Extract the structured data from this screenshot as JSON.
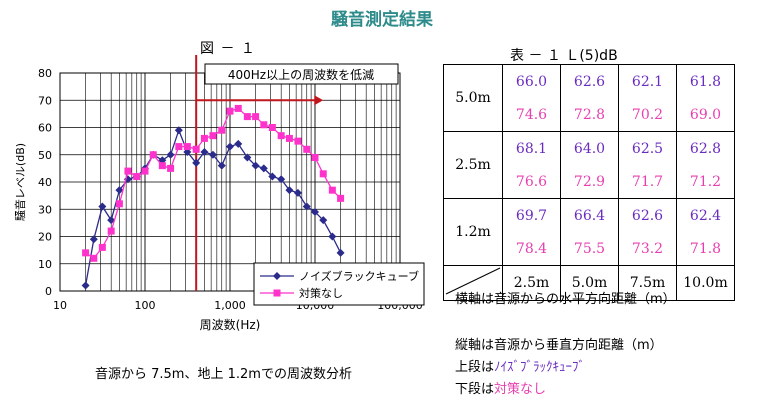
{
  "page": {
    "title": "騒音測定結果",
    "figure_label": "図 － １",
    "caption": "音源から 7.5m、地上 1.2mでの周波数分析"
  },
  "chart_data": {
    "type": "line",
    "xscale": "log",
    "xlim": [
      10,
      100000
    ],
    "ylim": [
      0,
      80
    ],
    "ylabel": "騒音レベル(dB)",
    "xlabel": "周波数(Hz)",
    "yticks": [
      "0",
      "10",
      "20",
      "30",
      "40",
      "50",
      "60",
      "70",
      "80"
    ],
    "xticks": [
      "10",
      "100",
      "1,000",
      "10,000",
      "100,000"
    ],
    "grid": true,
    "legend_position": "bottom-right",
    "annotation": {
      "text": "400Hz以上の周波数を低減",
      "vline_x": 400,
      "arrow_from_x": 400,
      "arrow_to_x": 12500,
      "arrow_y": 70,
      "line_color": "#c0161e"
    },
    "x": [
      20,
      25,
      31.5,
      40,
      50,
      63,
      80,
      100,
      125,
      160,
      200,
      250,
      315,
      400,
      500,
      630,
      800,
      1000,
      1250,
      1600,
      2000,
      2500,
      3150,
      4000,
      5000,
      6300,
      8000,
      10000,
      12500,
      16000,
      20000
    ],
    "series": [
      {
        "name": "ノイズブラックキューブ",
        "color": "#2b2b8c",
        "marker": "diamond",
        "values": [
          2,
          19,
          31,
          26,
          37,
          41,
          42,
          45,
          50,
          48,
          50,
          59,
          51,
          47,
          51,
          50,
          46,
          53,
          54,
          49,
          46,
          45,
          42,
          41,
          37,
          36,
          31,
          29,
          26,
          20,
          14
        ]
      },
      {
        "name": "対策なし",
        "color": "#ff33cc",
        "marker": "square",
        "values": [
          14,
          12,
          16,
          22,
          32,
          44,
          42,
          44,
          50,
          46,
          45,
          53,
          53,
          52,
          56,
          57,
          59,
          66,
          67,
          64,
          64,
          61,
          60,
          57,
          56,
          55,
          52,
          49,
          43,
          37,
          34
        ]
      }
    ]
  },
  "table": {
    "title": "表 － １ Ｌ(5)dB",
    "rows": [
      {
        "label": "5.0m",
        "upper": [
          "66.0",
          "62.6",
          "62.1",
          "61.8"
        ],
        "lower": [
          "74.6",
          "72.8",
          "70.2",
          "69.0"
        ]
      },
      {
        "label": "2.5m",
        "upper": [
          "68.1",
          "64.0",
          "62.5",
          "62.8"
        ],
        "lower": [
          "76.6",
          "72.9",
          "71.7",
          "71.2"
        ]
      },
      {
        "label": "1.2m",
        "upper": [
          "69.7",
          "66.4",
          "62.6",
          "62.4"
        ],
        "lower": [
          "78.4",
          "75.5",
          "73.2",
          "71.8"
        ]
      }
    ],
    "columns": [
      "2.5m",
      "5.0m",
      "7.5m",
      "10.0m"
    ]
  },
  "notes": {
    "horizontal": "横軸は音源からの水平方向距離（m）",
    "vertical": "縦軸は音源から垂直方向距離（m）",
    "upper_prefix": "上段は",
    "upper_value": "ﾉｲｽﾞﾌﾞﾗｯｸｷｭｰﾌﾞ",
    "lower_prefix": "下段は",
    "lower_value": "対策なし"
  }
}
